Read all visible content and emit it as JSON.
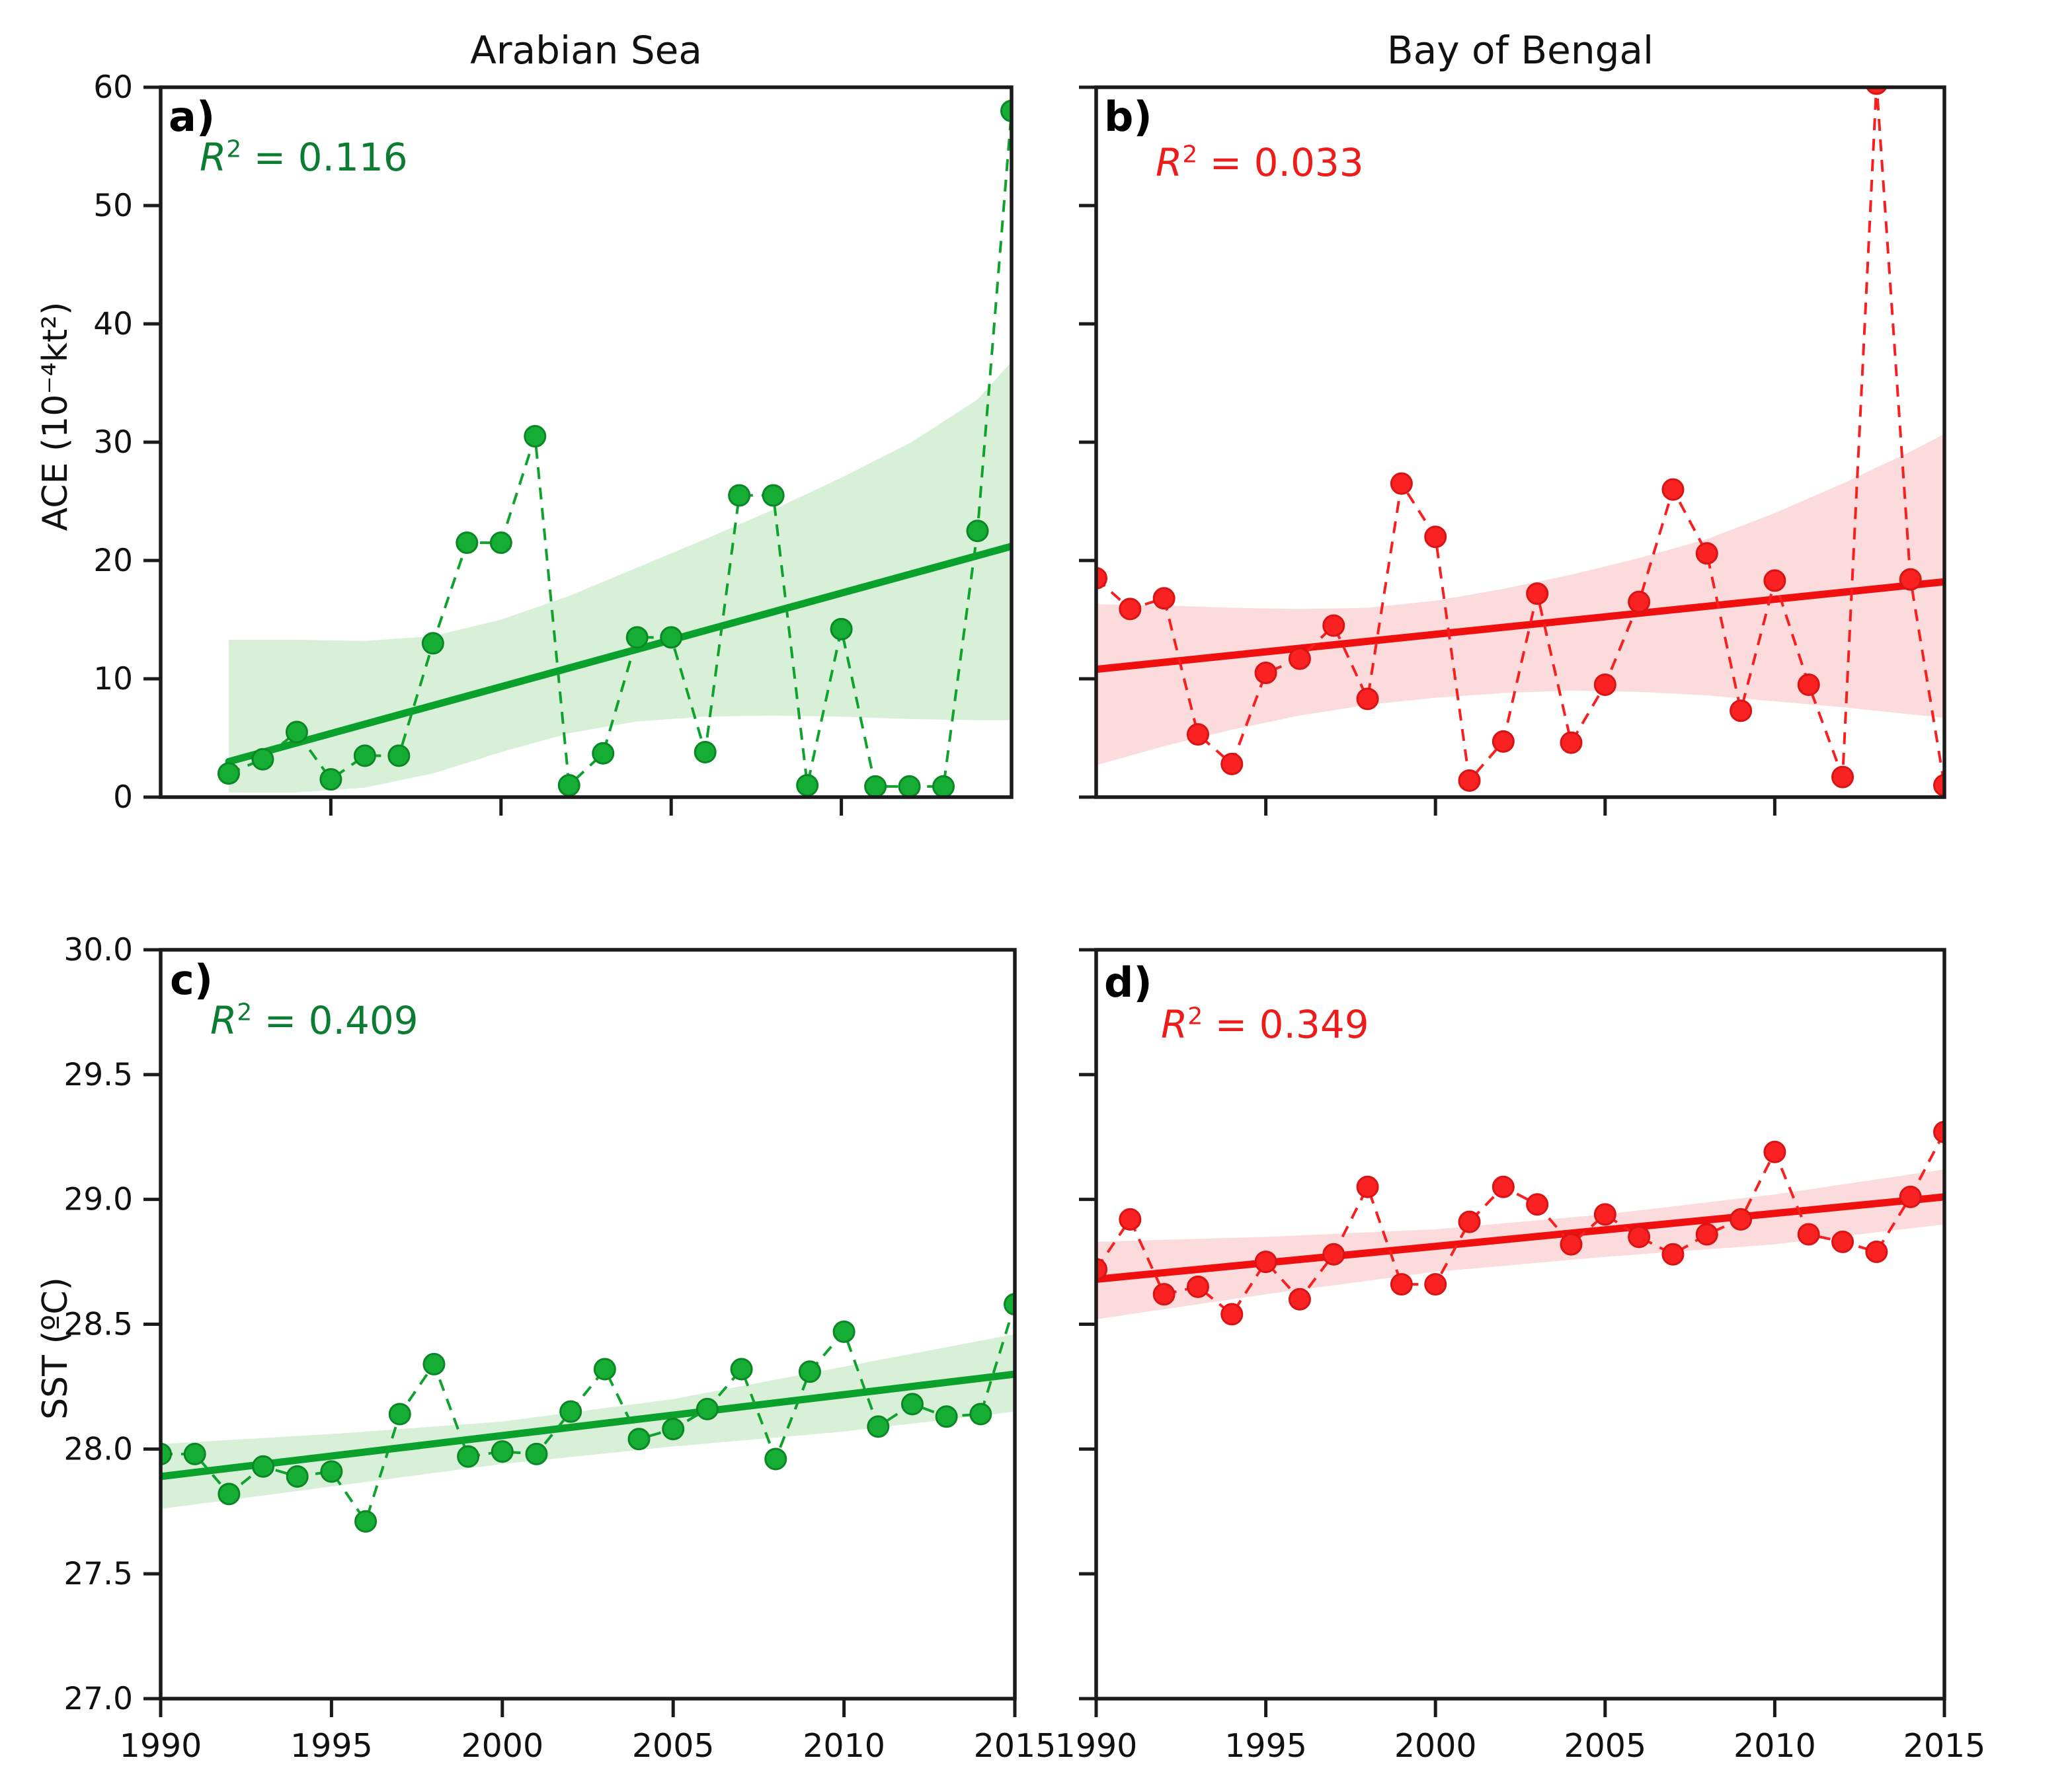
{
  "figure": {
    "column_titles": [
      "Arabian Sea",
      "Bay of Bengal"
    ],
    "ylabel_top": "ACE (10⁻⁴kt²)",
    "ylabel_bottom": "SST (ºC)"
  },
  "chart_data": [
    {
      "type": "line",
      "panel": "a",
      "label": "a)",
      "column_title": "Arabian Sea",
      "ylabel": "ACE (10⁻⁴kt²)",
      "r2": 0.116,
      "r2_text": "R² = 0.116",
      "r2_parts": {
        "r": "R",
        "sup": "2",
        "rest": " = 0.116"
      },
      "xlim": [
        1990,
        2015
      ],
      "ylim": [
        0,
        60
      ],
      "yticks": [
        0,
        10,
        20,
        30,
        40,
        50,
        60
      ],
      "ytick_labels": [
        "0",
        "10",
        "20",
        "30",
        "40",
        "50",
        "60"
      ],
      "xticks": [
        1995,
        2000,
        2005,
        2010
      ],
      "xtick_labels": [],
      "grid": false,
      "x": [
        1992,
        1993,
        1994,
        1995,
        1996,
        1997,
        1998,
        1999,
        2000,
        2001,
        2002,
        2003,
        2004,
        2005,
        2006,
        2007,
        2008,
        2009,
        2010,
        2011,
        2012,
        2013,
        2014,
        2015
      ],
      "y": [
        2.0,
        3.2,
        5.5,
        1.5,
        3.5,
        3.5,
        13.0,
        21.5,
        21.5,
        30.5,
        1.0,
        3.7,
        13.5,
        13.5,
        3.8,
        25.5,
        25.5,
        1.0,
        14.2,
        0.9,
        0.9,
        0.9,
        22.5,
        58.0
      ],
      "trend": {
        "x": [
          1992,
          2015
        ],
        "y": [
          3.0,
          21.2
        ]
      },
      "band": {
        "x": [
          1992,
          1994,
          1996,
          1998,
          2000,
          2002,
          2004,
          2006,
          2008,
          2010,
          2012,
          2014,
          2015
        ],
        "upper": [
          13.3,
          13.3,
          13.2,
          13.6,
          15.0,
          17.0,
          19.4,
          21.8,
          24.3,
          27.0,
          29.9,
          33.6,
          36.8
        ],
        "lower": [
          0.4,
          0.4,
          0.8,
          2.0,
          3.8,
          5.4,
          6.4,
          6.8,
          6.9,
          6.8,
          6.6,
          6.5,
          6.5
        ]
      },
      "colors": {
        "line": "#0fa32e",
        "marker": "#16ad34",
        "marker_edge": "#0b8726",
        "trend": "#0aa02c",
        "band": "#d8efd8",
        "text": "#0b7c31"
      }
    },
    {
      "type": "line",
      "panel": "b",
      "label": "b)",
      "column_title": "Bay of Bengal",
      "ylabel": "ACE (10⁻⁴kt²)",
      "r2": 0.033,
      "r2_text": "R² = 0.033",
      "r2_parts": {
        "r": "R",
        "sup": "2",
        "rest": " = 0.033"
      },
      "xlim": [
        1990,
        2015
      ],
      "ylim": [
        0,
        60
      ],
      "yticks": [
        0,
        10,
        20,
        30,
        40,
        50,
        60
      ],
      "ytick_labels": [],
      "xticks": [
        1995,
        2000,
        2005,
        2010
      ],
      "xtick_labels": [],
      "grid": false,
      "x": [
        1990,
        1991,
        1992,
        1993,
        1994,
        1995,
        1996,
        1997,
        1998,
        1999,
        2000,
        2001,
        2002,
        2003,
        2004,
        2005,
        2006,
        2007,
        2008,
        2009,
        2010,
        2011,
        2012,
        2013,
        2014,
        2015
      ],
      "y": [
        18.5,
        15.9,
        16.8,
        5.3,
        2.8,
        10.5,
        11.7,
        14.5,
        8.3,
        26.5,
        22.0,
        1.4,
        4.7,
        17.2,
        4.6,
        9.5,
        16.5,
        26.0,
        20.6,
        7.3,
        18.3,
        9.5,
        1.7,
        60.3,
        18.4,
        1.0
      ],
      "trend": {
        "x": [
          1990,
          2015
        ],
        "y": [
          10.8,
          18.2
        ]
      },
      "band": {
        "x": [
          1990,
          1992,
          1994,
          1996,
          1998,
          2000,
          2002,
          2004,
          2006,
          2008,
          2010,
          2012,
          2014,
          2015
        ],
        "upper": [
          16.3,
          16.2,
          16.0,
          15.9,
          16.0,
          16.6,
          17.6,
          18.8,
          20.2,
          21.8,
          24.0,
          26.5,
          29.2,
          30.7
        ],
        "lower": [
          2.7,
          4.3,
          5.7,
          6.9,
          7.8,
          8.4,
          8.8,
          9.0,
          8.9,
          8.6,
          8.1,
          7.6,
          7.0,
          6.7
        ]
      },
      "colors": {
        "line": "#f71f1f",
        "marker": "#f92121",
        "marker_edge": "#d81414",
        "trend": "#ef0f0f",
        "band": "#fbdbdb",
        "text": "#ee1b1b"
      }
    },
    {
      "type": "line",
      "panel": "c",
      "label": "c)",
      "column_title": "Arabian Sea",
      "ylabel": "SST (ºC)",
      "r2": 0.409,
      "r2_text": "R² = 0.409",
      "r2_parts": {
        "r": "R",
        "sup": "2",
        "rest": " = 0.409"
      },
      "xlim": [
        1990,
        2015
      ],
      "ylim": [
        27.0,
        30.0
      ],
      "yticks": [
        27.0,
        27.5,
        28.0,
        28.5,
        29.0,
        29.5,
        30.0
      ],
      "ytick_labels": [
        "27.0",
        "27.5",
        "28.0",
        "28.5",
        "29.0",
        "29.5",
        "30.0"
      ],
      "xticks": [
        1990,
        1995,
        2000,
        2005,
        2010,
        2015
      ],
      "xtick_labels": [
        "1990",
        "1995",
        "2000",
        "2005",
        "2010",
        "2015"
      ],
      "grid": false,
      "x": [
        1990,
        1991,
        1992,
        1993,
        1994,
        1995,
        1996,
        1997,
        1998,
        1999,
        2000,
        2001,
        2002,
        2003,
        2004,
        2005,
        2006,
        2007,
        2008,
        2009,
        2010,
        2011,
        2012,
        2013,
        2014,
        2015
      ],
      "y": [
        27.98,
        27.98,
        27.82,
        27.93,
        27.89,
        27.91,
        27.71,
        28.14,
        28.34,
        27.97,
        27.99,
        27.98,
        28.15,
        28.32,
        28.04,
        28.08,
        28.16,
        28.32,
        27.96,
        28.31,
        28.47,
        28.09,
        28.18,
        28.13,
        28.14,
        28.58
      ],
      "trend": {
        "x": [
          1990,
          2015
        ],
        "y": [
          27.89,
          28.3
        ]
      },
      "band": {
        "x": [
          1990,
          1995,
          2000,
          2005,
          2010,
          2015
        ],
        "upper": [
          28.02,
          28.06,
          28.11,
          28.2,
          28.33,
          28.46
        ],
        "lower": [
          27.76,
          27.85,
          27.94,
          28.01,
          28.07,
          28.15
        ]
      },
      "colors": {
        "line": "#0fa32e",
        "marker": "#16ad34",
        "marker_edge": "#0b8726",
        "trend": "#0aa02c",
        "band": "#d8efd8",
        "text": "#0b7c31"
      }
    },
    {
      "type": "line",
      "panel": "d",
      "label": "d)",
      "column_title": "Bay of Bengal",
      "ylabel": "SST (ºC)",
      "r2": 0.349,
      "r2_text": "R² = 0.349",
      "r2_parts": {
        "r": "R",
        "sup": "2",
        "rest": " = 0.349"
      },
      "xlim": [
        1990,
        2015
      ],
      "ylim": [
        27.0,
        30.0
      ],
      "yticks": [
        27.0,
        27.5,
        28.0,
        28.5,
        29.0,
        29.5,
        30.0
      ],
      "ytick_labels": [],
      "xticks": [
        1990,
        1995,
        2000,
        2005,
        2010,
        2015
      ],
      "xtick_labels": [
        "1990",
        "1995",
        "2000",
        "2005",
        "2010",
        "2015"
      ],
      "grid": false,
      "x": [
        1990,
        1991,
        1992,
        1993,
        1994,
        1995,
        1996,
        1997,
        1998,
        1999,
        2000,
        2001,
        2002,
        2003,
        2004,
        2005,
        2006,
        2007,
        2008,
        2009,
        2010,
        2011,
        2012,
        2013,
        2014,
        2015
      ],
      "y": [
        28.72,
        28.92,
        28.62,
        28.65,
        28.54,
        28.75,
        28.6,
        28.78,
        29.05,
        28.66,
        28.66,
        28.91,
        29.05,
        28.98,
        28.82,
        28.94,
        28.85,
        28.78,
        28.86,
        28.92,
        29.19,
        28.86,
        28.83,
        28.79,
        29.01,
        29.27
      ],
      "trend": {
        "x": [
          1990,
          2015
        ],
        "y": [
          28.68,
          29.01
        ]
      },
      "band": {
        "x": [
          1990,
          1995,
          2000,
          2005,
          2010,
          2015
        ],
        "upper": [
          28.83,
          28.85,
          28.88,
          28.94,
          29.02,
          29.12
        ],
        "lower": [
          28.52,
          28.62,
          28.71,
          28.77,
          28.82,
          28.9
        ]
      },
      "colors": {
        "line": "#f71f1f",
        "marker": "#f92121",
        "marker_edge": "#d81414",
        "trend": "#ef0f0f",
        "band": "#fbdbdb",
        "text": "#ee1b1b"
      }
    }
  ]
}
